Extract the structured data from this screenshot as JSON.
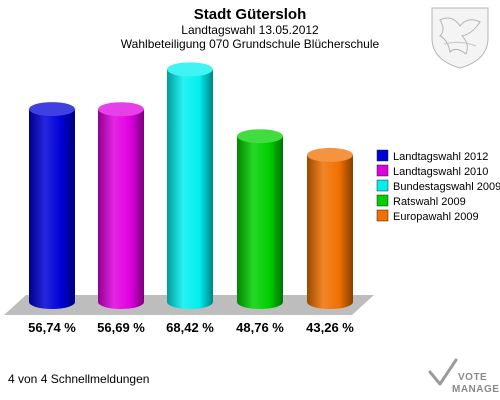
{
  "chart_data": {
    "type": "bar",
    "title": "Stadt Gütersloh",
    "subtitle_1": "Landtagswahl 13.05.2012",
    "subtitle_2": "Wahlbeteiligung 070 Grundschule Blücherschule",
    "categories": [
      "Landtagswahl 2012",
      "Landtagswahl 2010",
      "Bundestagswahl 2009",
      "Ratswahl 2009",
      "Europawahl 2009"
    ],
    "values": [
      56.74,
      56.69,
      68.42,
      48.76,
      43.26
    ],
    "value_labels": [
      "56,74 %",
      "56,69 %",
      "68,42 %",
      "48,76 %",
      "43,26 %"
    ],
    "colors": [
      "#0000d8",
      "#e000e0",
      "#00f0f0",
      "#00d000",
      "#f07000"
    ],
    "ylim": [
      0,
      100
    ],
    "grid": false,
    "legend_position": "right"
  },
  "footer": {
    "text": "4 von 4 Schnellmeldungen"
  },
  "logo": {
    "line1": "VOTE",
    "line2": "MANAGER"
  }
}
